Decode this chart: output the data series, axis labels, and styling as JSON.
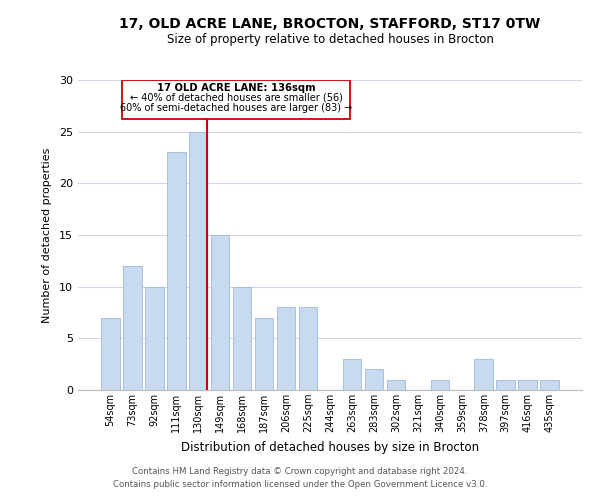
{
  "title1": "17, OLD ACRE LANE, BROCTON, STAFFORD, ST17 0TW",
  "title2": "Size of property relative to detached houses in Brocton",
  "xlabel": "Distribution of detached houses by size in Brocton",
  "ylabel": "Number of detached properties",
  "bar_labels": [
    "54sqm",
    "73sqm",
    "92sqm",
    "111sqm",
    "130sqm",
    "149sqm",
    "168sqm",
    "187sqm",
    "206sqm",
    "225sqm",
    "244sqm",
    "263sqm",
    "283sqm",
    "302sqm",
    "321sqm",
    "340sqm",
    "359sqm",
    "378sqm",
    "397sqm",
    "416sqm",
    "435sqm"
  ],
  "bar_values": [
    7,
    12,
    10,
    23,
    25,
    15,
    10,
    7,
    8,
    8,
    0,
    3,
    2,
    1,
    0,
    1,
    0,
    3,
    1,
    1,
    1
  ],
  "bar_color": "#c8daf0",
  "bar_edge_color": "#a0b8d8",
  "highlight_line_index": 4,
  "highlight_line_color": "#cc0000",
  "ylim": [
    0,
    30
  ],
  "yticks": [
    0,
    5,
    10,
    15,
    20,
    25,
    30
  ],
  "annotation_title": "17 OLD ACRE LANE: 136sqm",
  "annotation_line1": "← 40% of detached houses are smaller (56)",
  "annotation_line2": "60% of semi-detached houses are larger (83) →",
  "footnote1": "Contains HM Land Registry data © Crown copyright and database right 2024.",
  "footnote2": "Contains public sector information licensed under the Open Government Licence v3.0.",
  "background_color": "#ffffff",
  "grid_color": "#d0d8e8"
}
